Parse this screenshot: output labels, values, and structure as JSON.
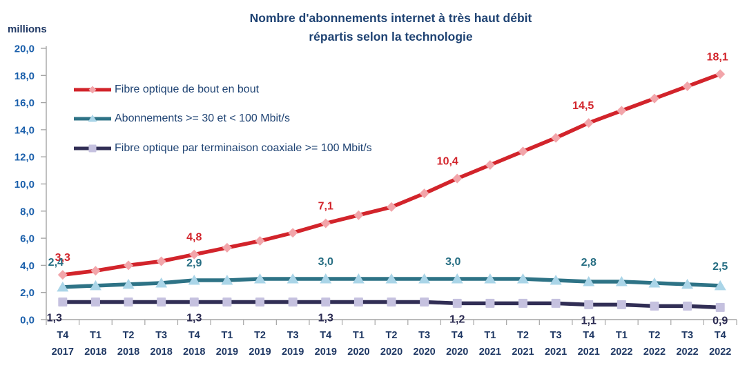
{
  "page": {
    "background": "#FFFFFF"
  },
  "header": {
    "title_line1": "Nombre d'abonnements internet à très haut débit",
    "title_line2": "répartis selon la technologie",
    "unit_label": "millions"
  },
  "colors": {
    "title_text": "#1F4373",
    "legend_text": "#1F4373",
    "y_tick_text": "#1A5FAB",
    "x_tick_text": "#1F3864",
    "axis_line": "#A6A6A6"
  },
  "chart_data": {
    "type": "line",
    "title": "Nombre d'abonnements internet à très haut débit répartis selon la technologie",
    "ylabel": "millions",
    "xlabel": "",
    "ylim": [
      0,
      20
    ],
    "ytick_step": 2,
    "ytick_labels": [
      "0,0",
      "2,0",
      "4,0",
      "6,0",
      "8,0",
      "10,0",
      "12,0",
      "14,0",
      "16,0",
      "18,0",
      "20,0"
    ],
    "grid": false,
    "legend_position": "upper-left-inside",
    "categories": [
      {
        "q": "T4",
        "yr": "2017"
      },
      {
        "q": "T1",
        "yr": "2018"
      },
      {
        "q": "T2",
        "yr": "2018"
      },
      {
        "q": "T3",
        "yr": "2018"
      },
      {
        "q": "T4",
        "yr": "2018"
      },
      {
        "q": "T1",
        "yr": "2019"
      },
      {
        "q": "T2",
        "yr": "2019"
      },
      {
        "q": "T3",
        "yr": "2019"
      },
      {
        "q": "T4",
        "yr": "2019"
      },
      {
        "q": "T1",
        "yr": "2020"
      },
      {
        "q": "T2",
        "yr": "2020"
      },
      {
        "q": "T3",
        "yr": "2020"
      },
      {
        "q": "T4",
        "yr": "2020"
      },
      {
        "q": "T1",
        "yr": "2021"
      },
      {
        "q": "T2",
        "yr": "2021"
      },
      {
        "q": "T3",
        "yr": "2021"
      },
      {
        "q": "T4",
        "yr": "2021"
      },
      {
        "q": "T1",
        "yr": "2022"
      },
      {
        "q": "T2",
        "yr": "2022"
      },
      {
        "q": "T3",
        "yr": "2022"
      },
      {
        "q": "T4",
        "yr": "2022"
      }
    ],
    "series": [
      {
        "name": "Fibre optique de bout en bout",
        "marker": "diamond",
        "color": "#D2242B",
        "marker_fill": "#F2A5AA",
        "label_color": "#D2242B",
        "label_side": "above",
        "values": [
          3.3,
          3.6,
          4.0,
          4.3,
          4.8,
          5.3,
          5.8,
          6.4,
          7.1,
          7.7,
          8.3,
          9.3,
          10.4,
          11.4,
          12.4,
          13.4,
          14.5,
          15.4,
          16.3,
          17.2,
          18.1
        ],
        "labeled_points": [
          {
            "index": 0,
            "text": "3,3"
          },
          {
            "index": 4,
            "text": "4,8"
          },
          {
            "index": 8,
            "text": "7,1"
          },
          {
            "index": 12,
            "text": "10,4",
            "dx": -14
          },
          {
            "index": 16,
            "text": "14,5",
            "dx": -8
          },
          {
            "index": 20,
            "text": "18,1",
            "dx": -4
          }
        ]
      },
      {
        "name": "Abonnements >= 30 et < 100 Mbit/s",
        "marker": "triangle",
        "color": "#2E7386",
        "marker_fill": "#AAD5E8",
        "label_color": "#256D82",
        "label_side": "above",
        "values": [
          2.4,
          2.5,
          2.6,
          2.7,
          2.9,
          2.9,
          3.0,
          3.0,
          3.0,
          3.0,
          3.0,
          3.0,
          3.0,
          3.0,
          3.0,
          2.9,
          2.8,
          2.8,
          2.7,
          2.6,
          2.5
        ],
        "labeled_points": [
          {
            "index": 0,
            "text": "2,4",
            "dx": -10,
            "dy": -11
          },
          {
            "index": 4,
            "text": "2,9"
          },
          {
            "index": 8,
            "text": "3,0"
          },
          {
            "index": 12,
            "text": "3,0",
            "dx": -6
          },
          {
            "index": 16,
            "text": "2,8",
            "dy": -3
          },
          {
            "index": 20,
            "text": "2,5",
            "dy": -3
          }
        ]
      },
      {
        "name": "Fibre optique par terminaison coaxiale >= 100 Mbit/s",
        "marker": "square",
        "color": "#312E55",
        "marker_fill": "#C5C1DF",
        "label_color": "#2B2B52",
        "label_side": "below",
        "values": [
          1.3,
          1.3,
          1.3,
          1.3,
          1.3,
          1.3,
          1.3,
          1.3,
          1.3,
          1.3,
          1.3,
          1.3,
          1.2,
          1.2,
          1.2,
          1.2,
          1.1,
          1.1,
          1.0,
          1.0,
          0.9
        ],
        "labeled_points": [
          {
            "index": 0,
            "text": "1,3",
            "dx": -12
          },
          {
            "index": 4,
            "text": "1,3"
          },
          {
            "index": 8,
            "text": "1,3"
          },
          {
            "index": 12,
            "text": "1,2"
          },
          {
            "index": 16,
            "text": "1,1"
          },
          {
            "index": 20,
            "text": "0,9",
            "dy": -4
          }
        ]
      }
    ]
  }
}
